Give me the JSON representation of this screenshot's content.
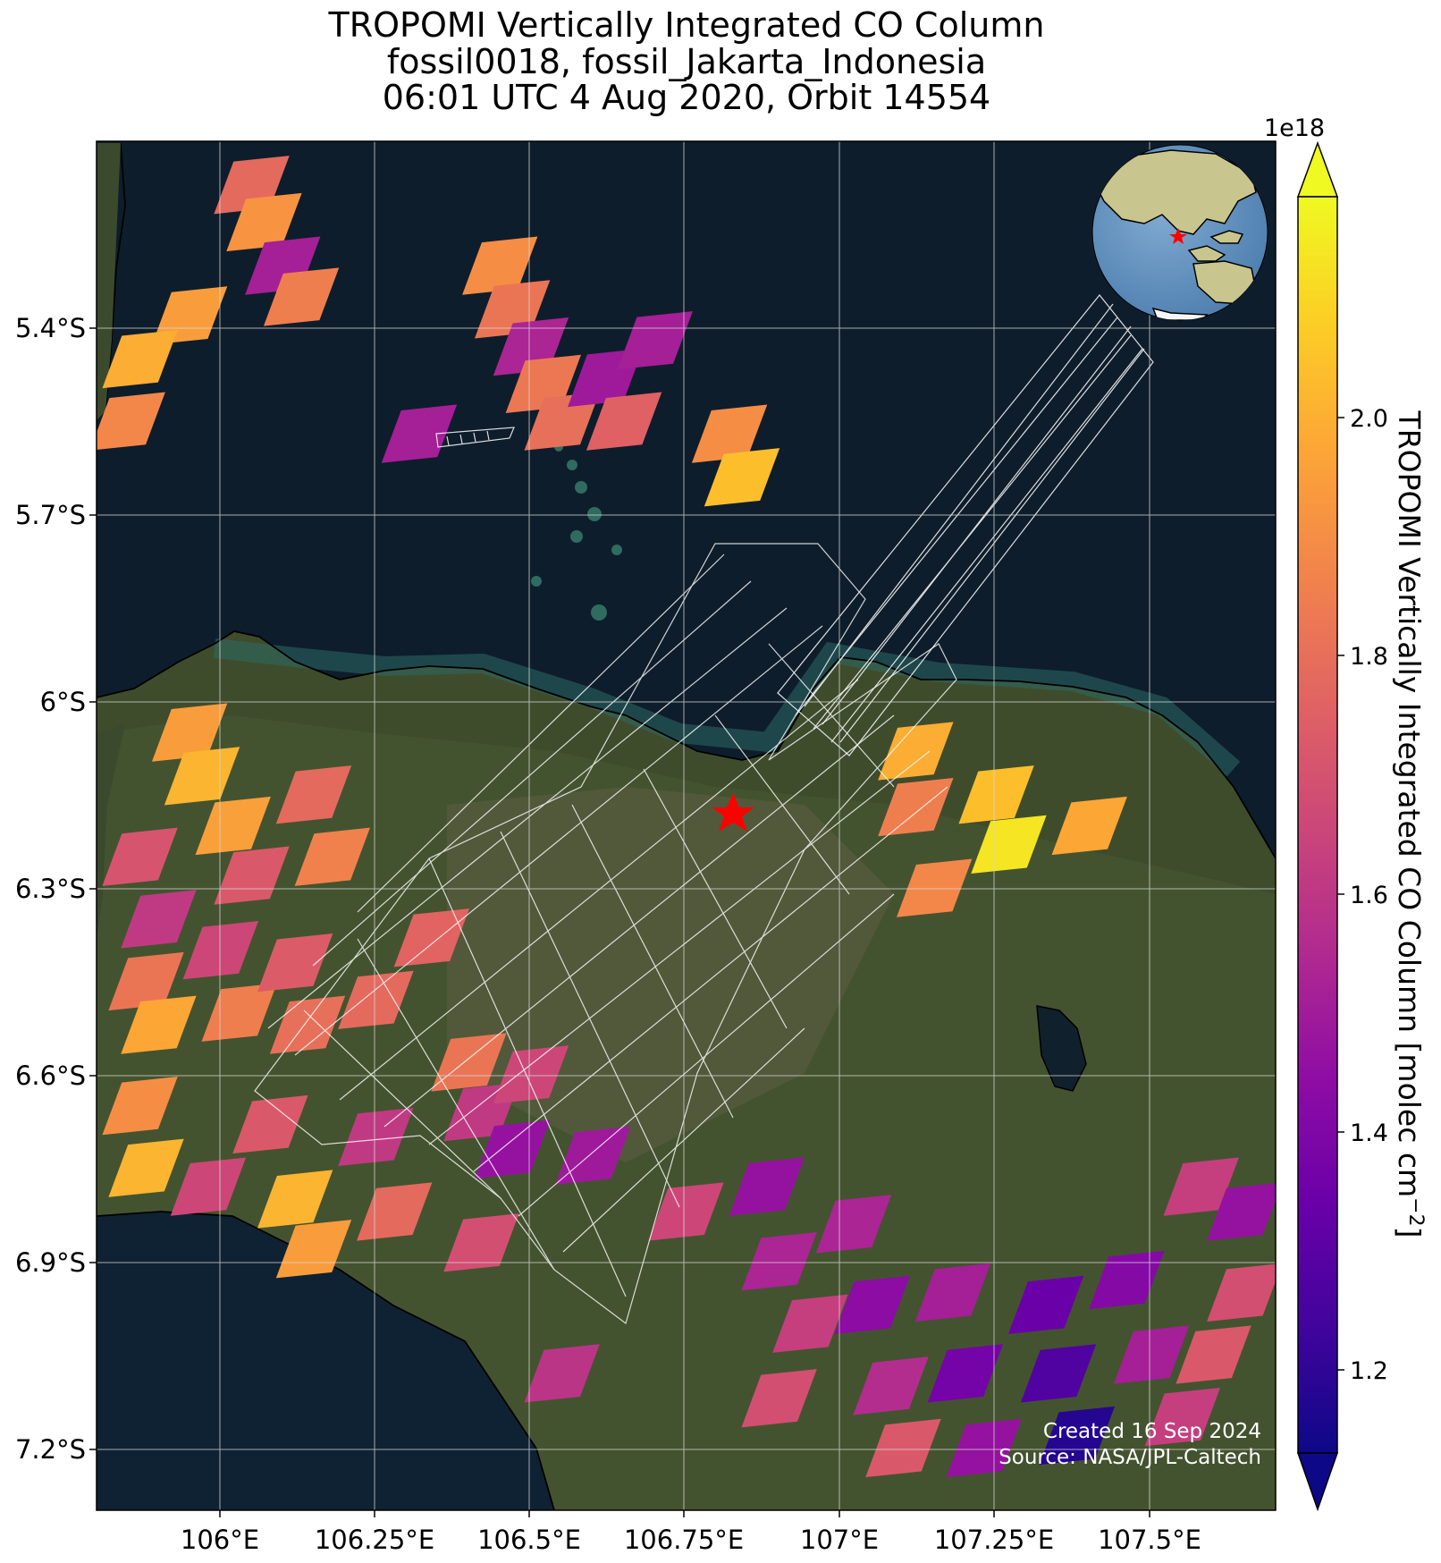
{
  "title": {
    "line1": "TROPOMI Vertically Integrated CO Column",
    "line2": "fossil0018, fossil_Jakarta_Indonesia",
    "line3": "06:01 UTC 4 Aug 2020, Orbit 14554"
  },
  "map": {
    "lon_range": [
      105.8,
      107.7
    ],
    "lat_range": [
      -7.3,
      -5.1
    ],
    "lon_ticks": [
      "106°E",
      "106.25°E",
      "106.5°E",
      "106.75°E",
      "107°E",
      "107.25°E",
      "107.5°E"
    ],
    "lat_ticks": [
      "5.4°S",
      "5.7°S",
      "6°S",
      "6.3°S",
      "6.6°S",
      "6.9°S",
      "7.2°S"
    ],
    "site_marker": {
      "lon": 106.82,
      "lat": -6.18,
      "label": "Jakarta",
      "color": "#ff0000"
    },
    "basemap": "satellite imagery",
    "gridlines": true,
    "inset": "globe-inset"
  },
  "credits": {
    "line1": "Created 16 Sep 2024",
    "line2": "Source: NASA/JPL-Caltech"
  },
  "colorbar": {
    "label": "TROPOMI Vertically Integrated CO Column [molec cm",
    "label_sup": "−2",
    "label_end": "]",
    "multiplier": "1e18",
    "min": 1.1,
    "max": 2.2,
    "ticks": [
      "1.2",
      "1.4",
      "1.6",
      "1.8",
      "2.0"
    ],
    "colormap": "plasma",
    "extend": "both"
  },
  "chart_data": {
    "type": "heatmap",
    "title": "TROPOMI Vertically Integrated CO Column",
    "unit": "molec cm^-2 (×1e18)",
    "colormap": "plasma",
    "cells": [
      {
        "lon": 106.05,
        "lat": -5.17,
        "value": 1.78
      },
      {
        "lon": 106.07,
        "lat": -5.23,
        "value": 1.92
      },
      {
        "lon": 106.1,
        "lat": -5.3,
        "value": 1.5
      },
      {
        "lon": 106.13,
        "lat": -5.35,
        "value": 1.85
      },
      {
        "lon": 105.95,
        "lat": -5.38,
        "value": 1.95
      },
      {
        "lon": 105.87,
        "lat": -5.45,
        "value": 2.0
      },
      {
        "lon": 105.85,
        "lat": -5.55,
        "value": 1.88
      },
      {
        "lon": 106.45,
        "lat": -5.3,
        "value": 1.9
      },
      {
        "lon": 106.47,
        "lat": -5.37,
        "value": 1.82
      },
      {
        "lon": 106.5,
        "lat": -5.43,
        "value": 1.52
      },
      {
        "lon": 106.52,
        "lat": -5.49,
        "value": 1.83
      },
      {
        "lon": 106.55,
        "lat": -5.55,
        "value": 1.8
      },
      {
        "lon": 106.62,
        "lat": -5.48,
        "value": 1.48
      },
      {
        "lon": 106.7,
        "lat": -5.42,
        "value": 1.5
      },
      {
        "lon": 106.32,
        "lat": -5.57,
        "value": 1.5
      },
      {
        "lon": 106.65,
        "lat": -5.55,
        "value": 1.75
      },
      {
        "lon": 106.82,
        "lat": -5.57,
        "value": 1.9
      },
      {
        "lon": 106.84,
        "lat": -5.64,
        "value": 2.05
      },
      {
        "lon": 105.95,
        "lat": -6.05,
        "value": 1.95
      },
      {
        "lon": 105.97,
        "lat": -6.12,
        "value": 2.02
      },
      {
        "lon": 106.02,
        "lat": -6.2,
        "value": 1.96
      },
      {
        "lon": 106.05,
        "lat": -6.28,
        "value": 1.72
      },
      {
        "lon": 106.15,
        "lat": -6.15,
        "value": 1.78
      },
      {
        "lon": 106.18,
        "lat": -6.25,
        "value": 1.86
      },
      {
        "lon": 105.87,
        "lat": -6.25,
        "value": 1.7
      },
      {
        "lon": 105.9,
        "lat": -6.35,
        "value": 1.6
      },
      {
        "lon": 105.88,
        "lat": -6.45,
        "value": 1.82
      },
      {
        "lon": 105.9,
        "lat": -6.52,
        "value": 1.98
      },
      {
        "lon": 106.0,
        "lat": -6.4,
        "value": 1.65
      },
      {
        "lon": 106.03,
        "lat": -6.5,
        "value": 1.85
      },
      {
        "lon": 106.12,
        "lat": -6.42,
        "value": 1.73
      },
      {
        "lon": 106.14,
        "lat": -6.52,
        "value": 1.8
      },
      {
        "lon": 106.25,
        "lat": -6.48,
        "value": 1.78
      },
      {
        "lon": 106.34,
        "lat": -6.38,
        "value": 1.76
      },
      {
        "lon": 105.87,
        "lat": -6.65,
        "value": 1.9
      },
      {
        "lon": 105.88,
        "lat": -6.75,
        "value": 2.02
      },
      {
        "lon": 105.98,
        "lat": -6.78,
        "value": 1.65
      },
      {
        "lon": 106.08,
        "lat": -6.68,
        "value": 1.72
      },
      {
        "lon": 106.12,
        "lat": -6.8,
        "value": 2.02
      },
      {
        "lon": 106.15,
        "lat": -6.88,
        "value": 1.95
      },
      {
        "lon": 106.25,
        "lat": -6.7,
        "value": 1.6
      },
      {
        "lon": 106.28,
        "lat": -6.82,
        "value": 1.78
      },
      {
        "lon": 106.4,
        "lat": -6.58,
        "value": 1.82
      },
      {
        "lon": 106.42,
        "lat": -6.66,
        "value": 1.6
      },
      {
        "lon": 106.47,
        "lat": -6.72,
        "value": 1.45
      },
      {
        "lon": 106.5,
        "lat": -6.6,
        "value": 1.65
      },
      {
        "lon": 106.42,
        "lat": -6.87,
        "value": 1.68
      },
      {
        "lon": 106.6,
        "lat": -6.73,
        "value": 1.48
      },
      {
        "lon": 106.75,
        "lat": -6.82,
        "value": 1.65
      },
      {
        "lon": 106.88,
        "lat": -6.78,
        "value": 1.45
      },
      {
        "lon": 106.9,
        "lat": -6.9,
        "value": 1.52
      },
      {
        "lon": 106.95,
        "lat": -7.0,
        "value": 1.62
      },
      {
        "lon": 107.02,
        "lat": -6.84,
        "value": 1.52
      },
      {
        "lon": 107.05,
        "lat": -6.97,
        "value": 1.42
      },
      {
        "lon": 107.08,
        "lat": -7.1,
        "value": 1.55
      },
      {
        "lon": 107.1,
        "lat": -7.2,
        "value": 1.72
      },
      {
        "lon": 107.18,
        "lat": -6.95,
        "value": 1.5
      },
      {
        "lon": 107.2,
        "lat": -7.08,
        "value": 1.35
      },
      {
        "lon": 107.23,
        "lat": -7.2,
        "value": 1.45
      },
      {
        "lon": 107.33,
        "lat": -6.97,
        "value": 1.32
      },
      {
        "lon": 107.35,
        "lat": -7.08,
        "value": 1.25
      },
      {
        "lon": 107.38,
        "lat": -7.18,
        "value": 1.15
      },
      {
        "lon": 107.46,
        "lat": -6.93,
        "value": 1.4
      },
      {
        "lon": 107.5,
        "lat": -7.05,
        "value": 1.5
      },
      {
        "lon": 107.55,
        "lat": -7.15,
        "value": 1.62
      },
      {
        "lon": 107.6,
        "lat": -7.05,
        "value": 1.72
      },
      {
        "lon": 107.65,
        "lat": -6.95,
        "value": 1.68
      },
      {
        "lon": 107.58,
        "lat": -6.78,
        "value": 1.62
      },
      {
        "lon": 107.65,
        "lat": -6.82,
        "value": 1.45
      },
      {
        "lon": 106.55,
        "lat": -7.08,
        "value": 1.58
      },
      {
        "lon": 106.9,
        "lat": -7.12,
        "value": 1.68
      },
      {
        "lon": 107.12,
        "lat": -6.08,
        "value": 2.0
      },
      {
        "lon": 107.12,
        "lat": -6.17,
        "value": 1.85
      },
      {
        "lon": 107.25,
        "lat": -6.15,
        "value": 2.05
      },
      {
        "lon": 107.27,
        "lat": -6.23,
        "value": 2.15
      },
      {
        "lon": 107.4,
        "lat": -6.2,
        "value": 1.98
      },
      {
        "lon": 107.15,
        "lat": -6.3,
        "value": 1.88
      }
    ]
  }
}
